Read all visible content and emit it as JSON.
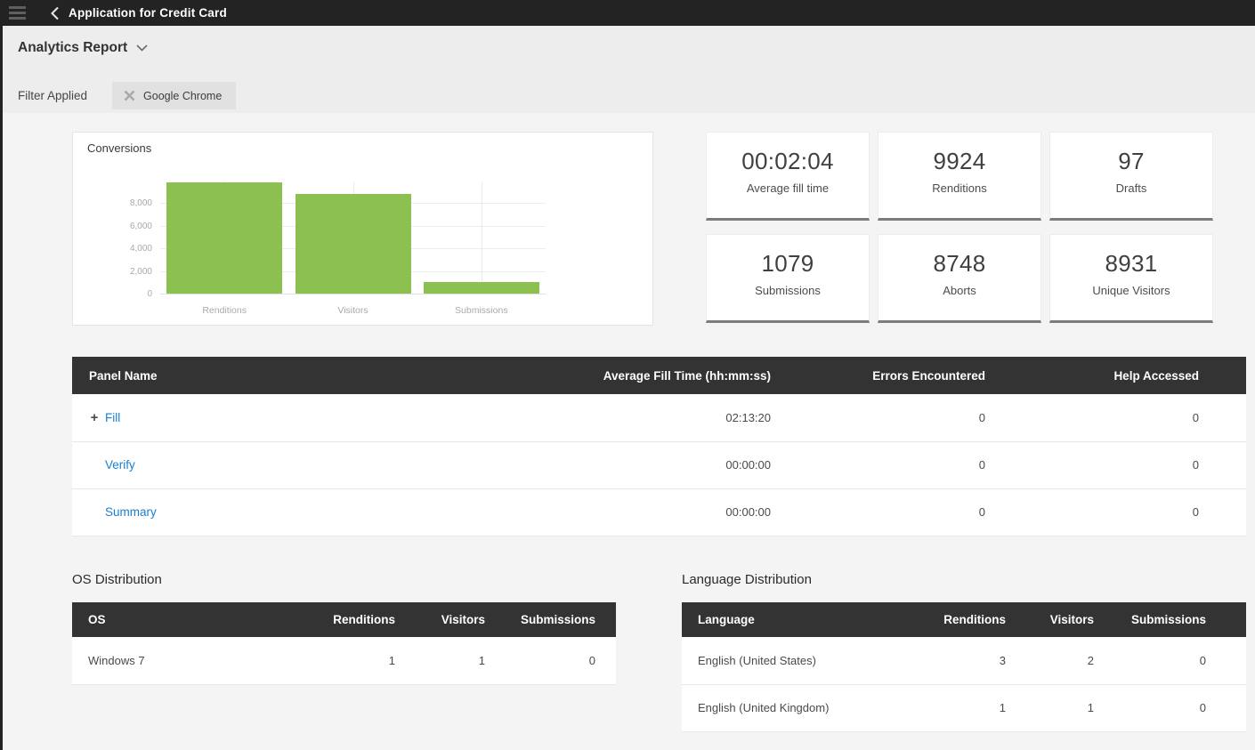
{
  "topbar": {
    "title": "Application for Credit Card"
  },
  "header": {
    "report_title": "Analytics Report",
    "filter_label": "Filter Applied",
    "chip_label": "Google Chrome"
  },
  "icons": {
    "menu": "hamburger-menu",
    "back": "chevron-left",
    "report_dropdown": "chevron-down",
    "chip_remove": "x-mark",
    "expand_row": "plus",
    "expand_glyph": "+"
  },
  "chart_data": {
    "type": "bar",
    "title": "Conversions",
    "categories": [
      "Renditions",
      "Visitors",
      "Submissions"
    ],
    "values": [
      9924,
      8931,
      1079
    ],
    "xlabel": "",
    "ylabel": "",
    "ylim": [
      0,
      10000
    ],
    "yticks": [
      0,
      2000,
      4000,
      6000,
      8000
    ],
    "ytick_labels": [
      "0",
      "2,000",
      "4,000",
      "6,000",
      "8,000"
    ],
    "bar_color": "#8CC152",
    "grid": true,
    "legend_position": "none"
  },
  "stat_cards": [
    {
      "value": "00:02:04",
      "label": "Average fill time"
    },
    {
      "value": "9924",
      "label": "Renditions"
    },
    {
      "value": "97",
      "label": "Drafts"
    },
    {
      "value": "1079",
      "label": "Submissions"
    },
    {
      "value": "8748",
      "label": "Aborts"
    },
    {
      "value": "8931",
      "label": "Unique Visitors"
    }
  ],
  "panel_table": {
    "columns": [
      "Panel Name",
      "Average Fill Time (hh:mm:ss)",
      "Errors Encountered",
      "Help Accessed"
    ],
    "rows": [
      {
        "name": "Fill",
        "expandable": true,
        "fill_time": "02:13:20",
        "errors": "0",
        "help": "0"
      },
      {
        "name": "Verify",
        "expandable": false,
        "fill_time": "00:00:00",
        "errors": "0",
        "help": "0"
      },
      {
        "name": "Summary",
        "expandable": false,
        "fill_time": "00:00:00",
        "errors": "0",
        "help": "0"
      }
    ]
  },
  "os_table": {
    "title": "OS Distribution",
    "columns": [
      "OS",
      "Renditions",
      "Visitors",
      "Submissions"
    ],
    "rows": [
      [
        "Windows 7",
        "1",
        "1",
        "0"
      ]
    ]
  },
  "language_table": {
    "title": "Language Distribution",
    "columns": [
      "Language",
      "Renditions",
      "Visitors",
      "Submissions"
    ],
    "rows": [
      [
        "English (United States)",
        "3",
        "2",
        "0"
      ],
      [
        "English (United Kingdom)",
        "1",
        "1",
        "0"
      ]
    ]
  },
  "colors": {
    "topbar": "#232323",
    "table_header": "#333333",
    "link_blue": "#1B7FD1",
    "bar_green": "#8CC152",
    "card_bottom_border": "#7C7C7C"
  }
}
